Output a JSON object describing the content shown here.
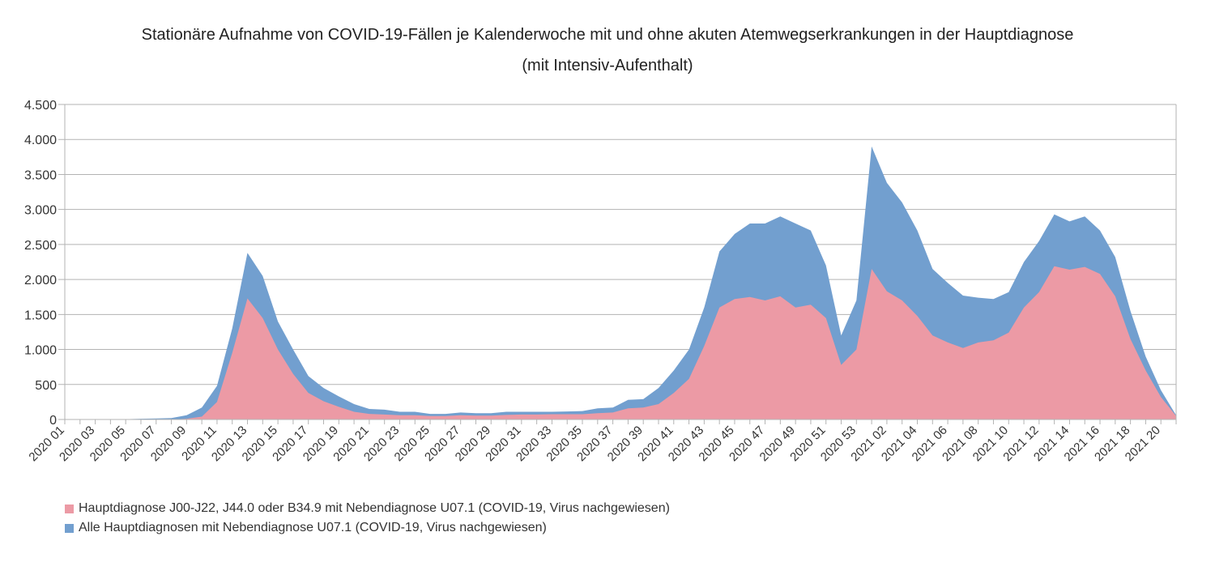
{
  "chart_data": {
    "type": "area",
    "title": "Stationäre Aufnahme von COVID-19-Fällen je Kalenderwoche mit und ohne akuten Atemwegserkrankungen in der Hauptdiagnose",
    "subtitle": "(mit Intensiv-Aufenthalt)",
    "xlabel": "",
    "ylabel": "",
    "ylim": [
      0,
      4500
    ],
    "y_ticks": [
      0,
      500,
      1000,
      1500,
      2000,
      2500,
      3000,
      3500,
      4000,
      4500
    ],
    "y_tick_labels": [
      "0",
      "500",
      "1.000",
      "1.500",
      "2.000",
      "2.500",
      "3.000",
      "3.500",
      "4.000",
      "4.500"
    ],
    "x_range": [
      "2020 01",
      "2021 21"
    ],
    "x_tick_labels": [
      "2020 01",
      "2020 03",
      "2020 05",
      "2020 07",
      "2020 09",
      "2020 11",
      "2020 13",
      "2020 15",
      "2020 17",
      "2020 19",
      "2020 21",
      "2020 23",
      "2020 25",
      "2020 27",
      "2020 29",
      "2020 31",
      "2020 33",
      "2020 35",
      "2020 37",
      "2020 39",
      "2020 41",
      "2020 43",
      "2020 45",
      "2020 47",
      "2020 49",
      "2020 51",
      "2020 53",
      "2021 02",
      "2021 04",
      "2021 06",
      "2021 08",
      "2021 10",
      "2021 12",
      "2021 14",
      "2021 16",
      "2021 18",
      "2021 20"
    ],
    "grid": true,
    "legend_position": "bottom-left",
    "series": [
      {
        "name": "Alle Hauptdiagnosen mit Nebendiagnose U07.1 (COVID-19, Virus nachgewiesen)",
        "color": "#729fcf",
        "values": [
          0,
          0,
          0,
          0,
          5,
          10,
          15,
          20,
          60,
          170,
          480,
          1300,
          2380,
          2050,
          1400,
          1000,
          620,
          450,
          330,
          220,
          150,
          140,
          110,
          110,
          80,
          80,
          100,
          90,
          90,
          110,
          110,
          110,
          110,
          115,
          120,
          160,
          170,
          280,
          290,
          450,
          700,
          1000,
          1600,
          2400,
          2650,
          2800,
          2800,
          2900,
          2800,
          2700,
          2200,
          1200,
          1700,
          3900,
          3380,
          3100,
          2700,
          2150,
          1950,
          1770,
          1740,
          1720,
          1820,
          2250,
          2550,
          2930,
          2830,
          2900,
          2700,
          2320,
          1550,
          900,
          420,
          60
        ]
      },
      {
        "name": "Hauptdiagnose J00-J22, J44.0 oder B34.9 mit Nebendiagnose U07.1 (COVID-19, Virus nachgewiesen)",
        "color": "#ec9aa5",
        "values": [
          0,
          0,
          0,
          0,
          0,
          0,
          0,
          0,
          10,
          40,
          250,
          950,
          1730,
          1450,
          1000,
          650,
          380,
          260,
          180,
          110,
          80,
          70,
          60,
          60,
          50,
          50,
          60,
          55,
          55,
          65,
          70,
          70,
          75,
          75,
          75,
          90,
          100,
          160,
          170,
          220,
          380,
          580,
          1050,
          1600,
          1720,
          1750,
          1700,
          1760,
          1600,
          1640,
          1450,
          780,
          1000,
          2150,
          1830,
          1700,
          1480,
          1200,
          1100,
          1020,
          1100,
          1130,
          1240,
          1600,
          1820,
          2190,
          2140,
          2180,
          2080,
          1760,
          1150,
          700,
          320,
          50
        ]
      }
    ]
  }
}
